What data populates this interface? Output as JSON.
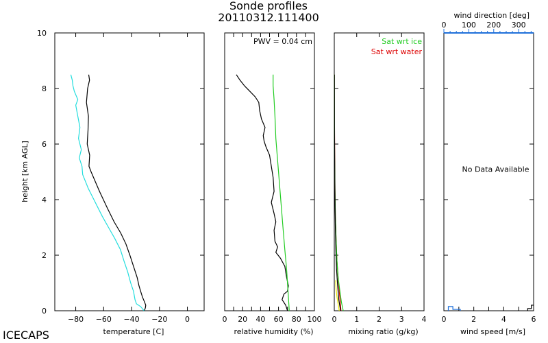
{
  "figure": {
    "title_line1": "Sonde profiles",
    "title_line2": "20110312.111400",
    "institution": "ICECAPS",
    "ylabel": "height [km AGL]"
  },
  "chart_data": [
    {
      "id": "temperature",
      "type": "line",
      "xlabel": "temperature [C]",
      "ylabel": "height [km AGL]",
      "xlim": [
        -95,
        12
      ],
      "ylim": [
        0,
        10
      ],
      "xticks": [
        -80,
        -60,
        -40,
        -20,
        0
      ],
      "yticks": [
        0,
        2,
        4,
        6,
        8,
        10
      ],
      "series": [
        {
          "color": "#000000",
          "x": [
            -30.9,
            -30.1,
            -29.8,
            -31.0,
            -32.2,
            -33.5,
            -34.7,
            -36.0,
            -38.6,
            -41.2,
            -44.0,
            -47.8,
            -52.5,
            -57.4,
            -63.0,
            -69.0,
            -70.5,
            -70.0,
            -71.8,
            -71.2,
            -70.9,
            -72.3,
            -71.5,
            -70.1,
            -70.7
          ],
          "y": [
            0.0,
            0.1,
            0.2,
            0.35,
            0.5,
            0.7,
            0.9,
            1.2,
            1.6,
            2.0,
            2.4,
            2.8,
            3.2,
            3.7,
            4.3,
            5.0,
            5.2,
            5.6,
            6.0,
            6.5,
            7.0,
            7.5,
            8.0,
            8.3,
            8.5
          ]
        },
        {
          "color": "#22dddd",
          "x": [
            -31.0,
            -33.5,
            -36.5,
            -37.5,
            -38.6,
            -40.6,
            -42.8,
            -45.5,
            -48.0,
            -52.0,
            -56.5,
            -61.0,
            -66.0,
            -71.0,
            -75.0,
            -75.5,
            -77.5,
            -76.0,
            -78.0,
            -77.0,
            -78.5,
            -80.0,
            -78.5,
            -81.0,
            -82.0,
            -82.5,
            -83.5
          ],
          "y": [
            0.0,
            0.15,
            0.25,
            0.4,
            0.7,
            1.0,
            1.4,
            1.8,
            2.2,
            2.6,
            3.0,
            3.4,
            3.9,
            4.4,
            4.9,
            5.2,
            5.5,
            5.8,
            6.2,
            6.6,
            7.0,
            7.4,
            7.6,
            7.9,
            8.1,
            8.3,
            8.5
          ]
        }
      ]
    },
    {
      "id": "relative_humidity",
      "type": "line",
      "xlabel": "relative humidity (%)",
      "xlim": [
        0,
        100
      ],
      "ylim": [
        0,
        10
      ],
      "xticks": [
        0,
        10,
        20,
        30,
        40,
        50,
        60,
        70,
        80,
        90,
        100
      ],
      "xticklabels": [
        "0",
        "20",
        "40",
        "60",
        "80",
        "100"
      ],
      "xticklabel_values": [
        0,
        20,
        40,
        60,
        80,
        100
      ],
      "yticks": [
        0,
        2,
        4,
        6,
        8,
        10
      ],
      "annotation": "PWV = 0.04 cm",
      "series": [
        {
          "color": "#000000",
          "x": [
            70,
            68,
            64,
            66,
            70,
            71,
            69,
            67,
            62,
            57,
            59,
            56,
            55,
            57,
            55,
            52,
            55,
            54,
            52,
            50,
            46,
            44,
            43,
            45,
            41,
            39,
            38,
            34,
            28,
            22,
            17,
            13
          ],
          "y": [
            0.0,
            0.2,
            0.4,
            0.6,
            0.7,
            0.9,
            1.2,
            1.6,
            1.9,
            2.1,
            2.3,
            2.5,
            2.9,
            3.2,
            3.5,
            3.9,
            4.3,
            4.8,
            5.2,
            5.6,
            5.9,
            6.1,
            6.3,
            6.6,
            6.9,
            7.2,
            7.5,
            7.7,
            7.9,
            8.1,
            8.3,
            8.5
          ]
        },
        {
          "color": "#22cc22",
          "x": [
            72,
            71,
            70,
            69,
            67,
            65,
            63,
            61,
            59,
            57,
            56,
            55,
            54,
            54
          ],
          "y": [
            0.0,
            0.5,
            1.0,
            1.5,
            2.2,
            3.0,
            3.8,
            4.6,
            5.4,
            6.2,
            7.0,
            7.6,
            8.1,
            8.5
          ]
        }
      ]
    },
    {
      "id": "mixing_ratio",
      "type": "line",
      "xlabel": "mixing ratio (g/kg)",
      "xlim": [
        0,
        4
      ],
      "ylim": [
        0,
        10
      ],
      "xticks": [
        0,
        1,
        2,
        3,
        4
      ],
      "yticks": [
        0,
        2,
        4,
        6,
        8,
        10
      ],
      "legend": [
        {
          "label": "Sat wrt ice",
          "color": "#22cc22"
        },
        {
          "label": "Sat wrt water",
          "color": "#dd0000"
        }
      ],
      "series": [
        {
          "name": "Sat wrt water",
          "color": "#dd0000",
          "x": [
            0.3,
            0.27,
            0.22,
            0.17,
            0.12,
            0.08,
            0.05,
            0.03,
            0.02,
            0.01,
            0.005
          ],
          "y": [
            0.0,
            0.3,
            0.7,
            1.2,
            1.8,
            2.6,
            3.4,
            4.4,
            5.5,
            7.0,
            8.5
          ]
        },
        {
          "name": "Sat wrt ice",
          "color": "#22cc22",
          "x": [
            0.4,
            0.32,
            0.25,
            0.17,
            0.12,
            0.08,
            0.05,
            0.03,
            0.015,
            0.01,
            0.005
          ],
          "y": [
            0.0,
            0.3,
            0.7,
            1.2,
            1.8,
            2.6,
            3.4,
            4.4,
            5.5,
            7.0,
            8.5
          ]
        },
        {
          "color": "#000000",
          "x": [
            0.28,
            0.2,
            0.15,
            0.1,
            0.07,
            0.05,
            0.03,
            0.02,
            0.01,
            0.005
          ],
          "y": [
            0.0,
            0.4,
            0.9,
            1.5,
            2.2,
            3.0,
            4.0,
            5.0,
            6.5,
            8.5
          ]
        },
        {
          "color": "#eeee00",
          "x": [
            0.22,
            0.18,
            0.12,
            0.08,
            0.06
          ],
          "y": [
            0.0,
            0.2,
            0.5,
            0.8,
            1.1
          ]
        }
      ]
    },
    {
      "id": "wind",
      "type": "line",
      "xlabel": "wind speed [m/s]",
      "xlim": [
        0,
        6
      ],
      "ylim": [
        0,
        10
      ],
      "xticks": [
        0,
        1,
        2,
        3,
        4,
        5,
        6
      ],
      "xticklabels": [
        "0",
        "2",
        "4",
        "6"
      ],
      "xticklabel_values": [
        0,
        2,
        4,
        6
      ],
      "yticks": [
        0,
        2,
        4,
        6,
        8,
        10
      ],
      "top_axis": {
        "label": "wind direction [deg]",
        "color": "#1e6fd9",
        "xlim": [
          0,
          360
        ],
        "ticklabels": [
          "0",
          "100",
          "200",
          "300"
        ],
        "ticklabel_values": [
          0,
          100,
          200,
          300
        ]
      },
      "annotation": "No Data Available",
      "series": [
        {
          "color": "#1e6fd9",
          "x": [
            0.3,
            0.3,
            0.6,
            0.6,
            1.1,
            1.1
          ],
          "y": [
            0.0,
            0.15,
            0.15,
            0.05,
            0.05,
            0.0
          ]
        },
        {
          "color": "#000000",
          "x": [
            5.6,
            5.6,
            5.85,
            5.85,
            6.0
          ],
          "y": [
            0.0,
            0.08,
            0.08,
            0.2,
            0.2
          ]
        }
      ]
    }
  ]
}
